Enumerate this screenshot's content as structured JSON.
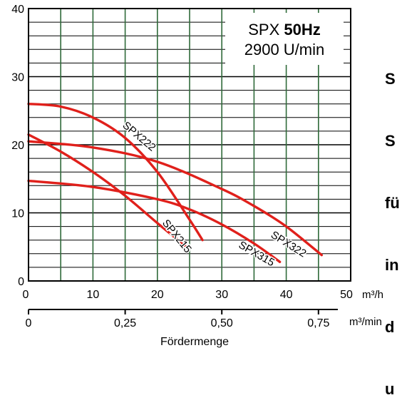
{
  "side_text": [
    "S",
    "S",
    "fü",
    "in",
    "d",
    "u"
  ],
  "chart_data": {
    "type": "line",
    "title_prefix": "SPX",
    "title_bold": "50Hz",
    "subtitle": "2900 U/min",
    "xlabel": "Fördermenge",
    "x_unit": "m³/h",
    "x2_unit": "m³/min",
    "xlim": [
      0,
      50
    ],
    "ylim": [
      0,
      40
    ],
    "x_ticks": [
      "0",
      "10",
      "20",
      "30",
      "40",
      "50"
    ],
    "y_ticks": [
      "0",
      "10",
      "20",
      "30",
      "40"
    ],
    "x2_ticks": [
      "0",
      "0,25",
      "0,50",
      "0,75"
    ],
    "x2_tick_values": [
      0,
      15,
      30,
      45
    ],
    "grid": true,
    "curve_color": "#e0201b",
    "series": [
      {
        "name": "SPX222",
        "x": [
          0,
          5,
          10,
          15,
          20,
          25,
          27
        ],
        "y": [
          26,
          25.6,
          24,
          21,
          16,
          9,
          6
        ]
      },
      {
        "name": "SPX215",
        "x": [
          0,
          5,
          10,
          15,
          20,
          24.5
        ],
        "y": [
          21.5,
          19,
          16,
          12.5,
          8.5,
          5
        ]
      },
      {
        "name": "SPX315",
        "x": [
          0,
          10,
          20,
          25,
          30,
          35,
          39
        ],
        "y": [
          14.7,
          13.8,
          12,
          10.5,
          8.3,
          5.5,
          2.8
        ]
      },
      {
        "name": "SPX322",
        "x": [
          0,
          10,
          20,
          30,
          35,
          40,
          45.5
        ],
        "y": [
          20.5,
          19.6,
          17.5,
          13.5,
          11,
          8,
          3.8
        ]
      }
    ]
  }
}
